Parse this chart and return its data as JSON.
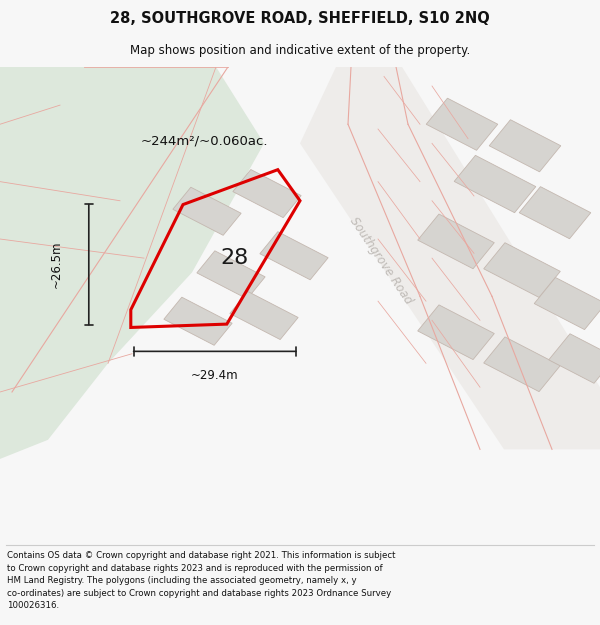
{
  "title": "28, SOUTHGROVE ROAD, SHEFFIELD, S10 2NQ",
  "subtitle": "Map shows position and indicative extent of the property.",
  "footer": "Contains OS data © Crown copyright and database right 2021. This information is subject\nto Crown copyright and database rights 2023 and is reproduced with the permission of\nHM Land Registry. The polygons (including the associated geometry, namely x, y\nco-ordinates) are subject to Crown copyright and database rights 2023 Ordnance Survey\n100026316.",
  "area_label": "~244m²/~0.060ac.",
  "dim_h": "~26.5m",
  "dim_w": "~29.4m",
  "property_number": "28",
  "road_label": "Southgrove Road",
  "bg_color": "#f7f7f7",
  "map_bg": "#efeeec",
  "green_color": "#dde8dc",
  "building_color": "#d6d4d0",
  "building_edge": "#c4b8b0",
  "pink": "#e8a8a0",
  "red": "#dd0000",
  "dim_color": "#222222",
  "text_color": "#111111",
  "road_text_color": "#c0bcb8",
  "title_fs": 10.5,
  "subtitle_fs": 8.5,
  "footer_fs": 6.2,
  "area_fs": 9.5,
  "dim_fs": 8.5,
  "road_fs": 8.5,
  "prop_num_fs": 16
}
